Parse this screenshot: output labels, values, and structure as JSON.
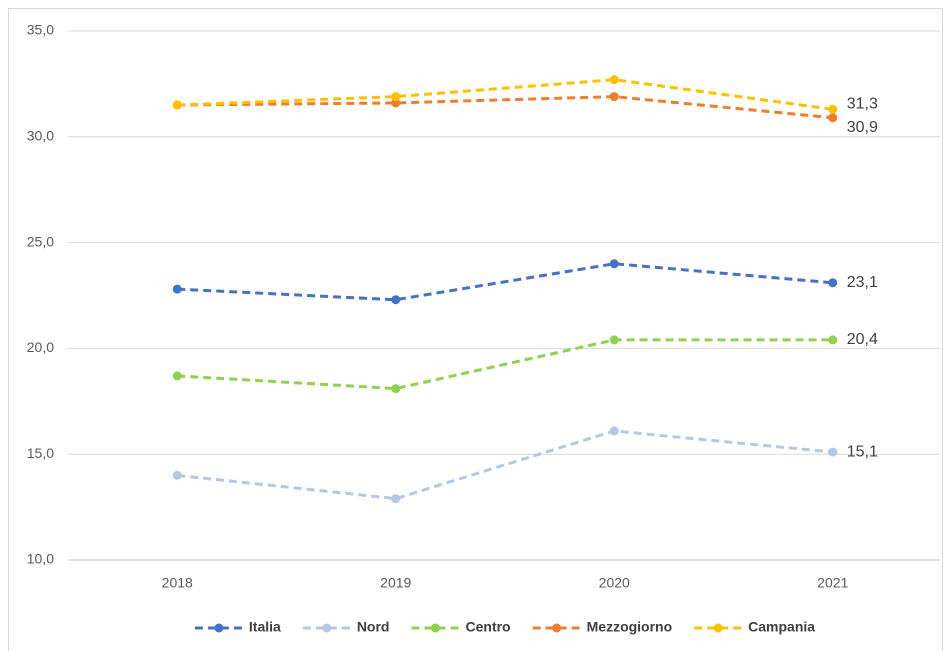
{
  "chart_data": {
    "type": "line",
    "categories": [
      "2018",
      "2019",
      "2020",
      "2021"
    ],
    "ylim": [
      10,
      35
    ],
    "yticks": [
      {
        "value": 10,
        "label": "10,0"
      },
      {
        "value": 15,
        "label": "15,0"
      },
      {
        "value": 20,
        "label": "20,0"
      },
      {
        "value": 25,
        "label": "25,0"
      },
      {
        "value": 30,
        "label": "30,0"
      },
      {
        "value": 35,
        "label": "35,0"
      }
    ],
    "grid": true,
    "legend": "bottom",
    "series": [
      {
        "name": "Italia",
        "color": "#4472c4",
        "values": [
          22.8,
          22.3,
          24.0,
          23.1
        ],
        "value_labels": [
          null,
          null,
          null,
          "23,1"
        ]
      },
      {
        "name": "Nord",
        "color": "#b4c7e7",
        "values": [
          14.0,
          12.9,
          16.1,
          15.1
        ],
        "value_labels": [
          null,
          null,
          null,
          "15,1"
        ]
      },
      {
        "name": "Centro",
        "color": "#92d050",
        "values": [
          18.7,
          18.1,
          20.4,
          20.4
        ],
        "value_labels": [
          null,
          null,
          null,
          "20,4"
        ]
      },
      {
        "name": "Mezzogiorno",
        "color": "#ed7d31",
        "values": [
          31.5,
          31.6,
          31.9,
          30.9
        ],
        "value_labels": [
          null,
          null,
          null,
          "30,9"
        ]
      },
      {
        "name": "Campania",
        "color": "#ffc000",
        "values": [
          31.5,
          31.9,
          32.7,
          31.3
        ],
        "value_labels": [
          null,
          null,
          null,
          "31,3"
        ]
      }
    ]
  }
}
